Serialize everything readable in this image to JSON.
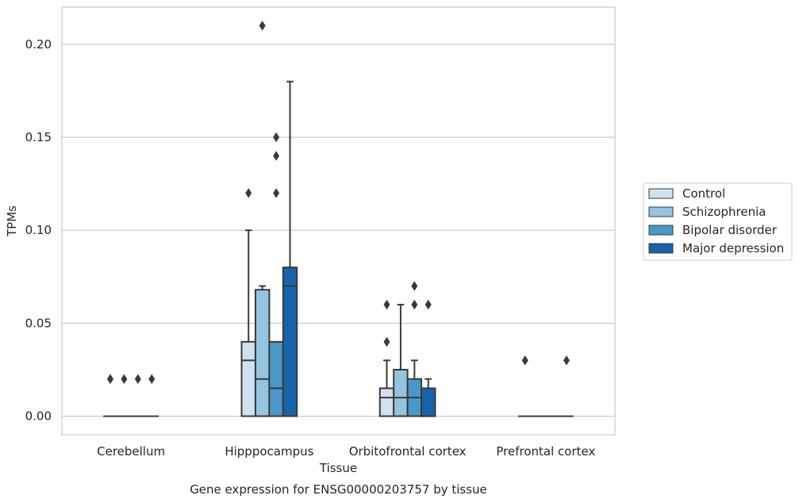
{
  "chart_data": {
    "type": "boxplot",
    "title": "Gene expression for ENSG00000203757 by tissue",
    "xlabel": "Tissue",
    "ylabel": "TPMs",
    "ylim": [
      -0.01,
      0.22
    ],
    "yticks": [
      0.0,
      0.05,
      0.1,
      0.15,
      0.2
    ],
    "ytick_labels": [
      "0.00",
      "0.05",
      "0.10",
      "0.15",
      "0.20"
    ],
    "grid": "horizontal",
    "legend_position": "right",
    "categories": [
      "Cerebellum",
      "Hipppocampus",
      "Orbitofrontal cortex",
      "Prefrontal cortex"
    ],
    "series": [
      {
        "name": "Control",
        "color": "#d0e1f2",
        "boxes": [
          {
            "q1": 0.0,
            "median": 0.0,
            "q3": 0.0,
            "whisker_low": 0.0,
            "whisker_high": 0.0,
            "outliers": [
              0.02,
              0.02
            ]
          },
          {
            "q1": 0.0,
            "median": 0.03,
            "q3": 0.04,
            "whisker_low": 0.0,
            "whisker_high": 0.1,
            "outliers": [
              0.12
            ]
          },
          {
            "q1": 0.0,
            "median": 0.01,
            "q3": 0.015,
            "whisker_low": 0.0,
            "whisker_high": 0.03,
            "outliers": [
              0.04,
              0.06
            ]
          },
          {
            "q1": 0.0,
            "median": 0.0,
            "q3": 0.0,
            "whisker_low": 0.0,
            "whisker_high": 0.0,
            "outliers": [
              0.03
            ]
          }
        ]
      },
      {
        "name": "Schizophrenia",
        "color": "#94c4df",
        "boxes": [
          {
            "q1": 0.0,
            "median": 0.0,
            "q3": 0.0,
            "whisker_low": 0.0,
            "whisker_high": 0.0,
            "outliers": [
              0.02
            ]
          },
          {
            "q1": 0.0,
            "median": 0.02,
            "q3": 0.068,
            "whisker_low": 0.0,
            "whisker_high": 0.07,
            "outliers": [
              0.21
            ]
          },
          {
            "q1": 0.0,
            "median": 0.01,
            "q3": 0.025,
            "whisker_low": 0.0,
            "whisker_high": 0.06,
            "outliers": []
          },
          {
            "q1": 0.0,
            "median": 0.0,
            "q3": 0.0,
            "whisker_low": 0.0,
            "whisker_high": 0.0,
            "outliers": []
          }
        ]
      },
      {
        "name": "Bipolar disorder",
        "color": "#4a98c9",
        "boxes": [
          {
            "q1": 0.0,
            "median": 0.0,
            "q3": 0.0,
            "whisker_low": 0.0,
            "whisker_high": 0.0,
            "outliers": [
              0.02
            ]
          },
          {
            "q1": 0.0,
            "median": 0.015,
            "q3": 0.04,
            "whisker_low": 0.0,
            "whisker_high": 0.04,
            "outliers": [
              0.12,
              0.14,
              0.15
            ]
          },
          {
            "q1": 0.0,
            "median": 0.01,
            "q3": 0.02,
            "whisker_low": 0.0,
            "whisker_high": 0.03,
            "outliers": [
              0.06,
              0.07
            ]
          },
          {
            "q1": 0.0,
            "median": 0.0,
            "q3": 0.0,
            "whisker_low": 0.0,
            "whisker_high": 0.0,
            "outliers": []
          }
        ]
      },
      {
        "name": "Major depression",
        "color": "#1764ab",
        "boxes": [
          {
            "q1": 0.0,
            "median": 0.0,
            "q3": 0.0,
            "whisker_low": 0.0,
            "whisker_high": 0.0,
            "outliers": [
              0.02
            ]
          },
          {
            "q1": 0.0,
            "median": 0.07,
            "q3": 0.08,
            "whisker_low": 0.0,
            "whisker_high": 0.18,
            "outliers": []
          },
          {
            "q1": 0.0,
            "median": 0.0,
            "q3": 0.015,
            "whisker_low": 0.0,
            "whisker_high": 0.02,
            "outliers": [
              0.06
            ]
          },
          {
            "q1": 0.0,
            "median": 0.0,
            "q3": 0.0,
            "whisker_low": 0.0,
            "whisker_high": 0.0,
            "outliers": [
              0.03
            ]
          }
        ]
      }
    ]
  }
}
